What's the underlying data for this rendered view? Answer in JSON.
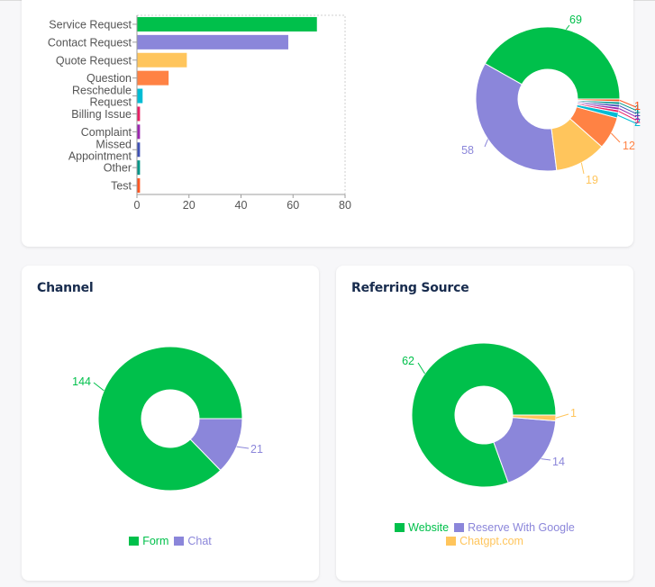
{
  "chart_data": [
    {
      "id": "type-bar",
      "type": "bar",
      "orientation": "horizontal",
      "title": "",
      "xlabel": "",
      "ylabel": "",
      "categories": [
        "Service Request",
        "Contact Request",
        "Quote Request",
        "Question",
        "Reschedule Request",
        "Billing Issue",
        "Complaint",
        "Missed Appointment",
        "Other",
        "Test"
      ],
      "category_lines": [
        [
          "Service Request"
        ],
        [
          "Contact Request"
        ],
        [
          "Quote Request"
        ],
        [
          "Question"
        ],
        [
          "Reschedule",
          "Request"
        ],
        [
          "Billing Issue"
        ],
        [
          "Complaint"
        ],
        [
          "Missed",
          "Appointment"
        ],
        [
          "Other"
        ],
        [
          "Test"
        ]
      ],
      "values": [
        69,
        58,
        19,
        12,
        2,
        1,
        1,
        1,
        1,
        1
      ],
      "colors": [
        "#00c04b",
        "#8b86da",
        "#ffc55c",
        "#ff8244",
        "#00bcd4",
        "#e91e63",
        "#9c27b0",
        "#3f51b5",
        "#009688",
        "#ff5722"
      ],
      "xlim": [
        0,
        80
      ],
      "xticks": [
        0,
        20,
        40,
        60,
        80
      ],
      "grid": "dashed border"
    },
    {
      "id": "type-donut",
      "type": "pie",
      "donut": true,
      "title": "",
      "categories": [
        "Service Request",
        "Contact Request",
        "Quote Request",
        "Question",
        "Reschedule Request",
        "Billing Issue",
        "Complaint",
        "Missed Appointment",
        "Other",
        "Test"
      ],
      "values": [
        69,
        58,
        19,
        12,
        2,
        1,
        1,
        1,
        1,
        1
      ],
      "labels": [
        "69",
        "58",
        "19",
        "12",
        "2",
        "1",
        "1",
        "1",
        "1",
        "1"
      ],
      "colors": [
        "#00c04b",
        "#8b86da",
        "#ffc55c",
        "#ff8244",
        "#00bcd4",
        "#e91e63",
        "#9c27b0",
        "#3f51b5",
        "#009688",
        "#ff5722"
      ],
      "legend": "none"
    },
    {
      "id": "channel",
      "type": "pie",
      "donut": true,
      "title": "Channel",
      "categories": [
        "Form",
        "Chat"
      ],
      "values": [
        144,
        21
      ],
      "labels": [
        "144",
        "21"
      ],
      "colors": [
        "#00c04b",
        "#8b86da"
      ],
      "legend": "bottom"
    },
    {
      "id": "referring-source",
      "type": "pie",
      "donut": true,
      "title": "Referring Source",
      "categories": [
        "Website",
        "Reserve With Google",
        "Chatgpt.com"
      ],
      "values": [
        62,
        14,
        1
      ],
      "labels": [
        "62",
        "14",
        "1"
      ],
      "colors": [
        "#00c04b",
        "#8b86da",
        "#ffc55c"
      ],
      "legend": "bottom"
    }
  ],
  "cards": {
    "channel_title": "Channel",
    "referring_title": "Referring Source"
  },
  "colors": {
    "title": "#172b4d",
    "axis_text": "#555555"
  }
}
